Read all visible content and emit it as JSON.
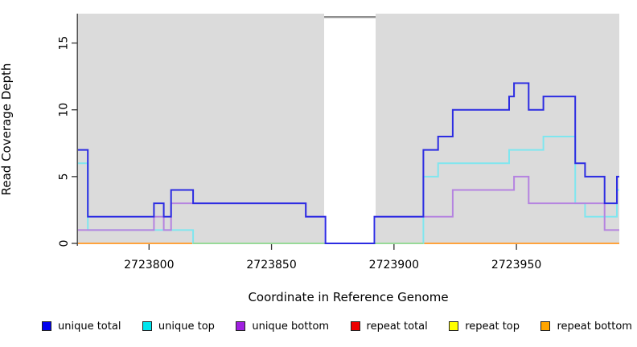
{
  "chart_data": {
    "type": "line",
    "subtype": "step-post-coverage",
    "title": "",
    "xlabel": "Coordinate in Reference Genome",
    "ylabel": "Read Coverage Depth",
    "xlim": [
      2723771,
      2723992
    ],
    "ylim": [
      0,
      17.2
    ],
    "xticks": [
      2723800,
      2723850,
      2723900,
      2723950
    ],
    "yticks": [
      0,
      5,
      10,
      15
    ],
    "grid": "off",
    "legend_position": "bottom",
    "plot_bg": "#DBDBDB",
    "axis_color": "#333333",
    "masked_region": {
      "x0": 2723871.5,
      "x1": 2723892.5,
      "fill": "#FFFFFF",
      "top_bar_color": "#8F8F8F"
    },
    "zero_blend_segment": {
      "x0": 2723818,
      "x1": 2723912,
      "value": 0,
      "color": "#98DA98"
    },
    "draw_order": [
      "repeat total",
      "repeat top",
      "repeat bottom",
      "unique top",
      "ZERO_BLEND",
      "unique bottom",
      "unique total"
    ],
    "series": [
      {
        "name": "unique total",
        "legend_color": "#0000EE",
        "line_color": "#2C2CE2",
        "steps": [
          [
            2723771,
            7
          ],
          [
            2723775,
            2
          ],
          [
            2723802,
            3
          ],
          [
            2723806,
            2
          ],
          [
            2723809,
            4
          ],
          [
            2723818,
            3
          ],
          [
            2723864,
            2
          ],
          [
            2723872,
            0
          ],
          [
            2723892,
            2
          ],
          [
            2723912,
            7
          ],
          [
            2723918,
            8
          ],
          [
            2723924,
            10
          ],
          [
            2723947,
            11
          ],
          [
            2723949,
            12
          ],
          [
            2723955,
            10
          ],
          [
            2723961,
            11
          ],
          [
            2723974,
            6
          ],
          [
            2723978,
            5
          ],
          [
            2723986,
            3
          ],
          [
            2723991,
            5
          ]
        ]
      },
      {
        "name": "unique top",
        "legend_color": "#00E5EE",
        "line_color": "#7FE6EF",
        "steps": [
          [
            2723771,
            6
          ],
          [
            2723775,
            1
          ],
          [
            2723818,
            0
          ],
          [
            2723912,
            5
          ],
          [
            2723918,
            6
          ],
          [
            2723947,
            7
          ],
          [
            2723961,
            8
          ],
          [
            2723974,
            3
          ],
          [
            2723978,
            2
          ],
          [
            2723991,
            4
          ]
        ]
      },
      {
        "name": "unique bottom",
        "legend_color": "#A020E0",
        "line_color": "#B583E0",
        "steps": [
          [
            2723771,
            1
          ],
          [
            2723802,
            2
          ],
          [
            2723806,
            1
          ],
          [
            2723809,
            3
          ],
          [
            2723864,
            2
          ],
          [
            2723872,
            0
          ],
          [
            2723892,
            2
          ],
          [
            2723924,
            4
          ],
          [
            2723949,
            5
          ],
          [
            2723955,
            3
          ],
          [
            2723986,
            1
          ]
        ]
      },
      {
        "name": "repeat total",
        "legend_color": "#EE0000",
        "line_color": "#DD2222",
        "steps": [
          [
            2723771,
            0
          ]
        ]
      },
      {
        "name": "repeat top",
        "legend_color": "#FFFF00",
        "line_color": "#FFE000",
        "steps": [
          [
            2723771,
            0
          ]
        ]
      },
      {
        "name": "repeat bottom",
        "legend_color": "#FFA500",
        "line_color": "#FFA33C",
        "steps": [
          [
            2723771,
            0
          ]
        ]
      }
    ]
  }
}
